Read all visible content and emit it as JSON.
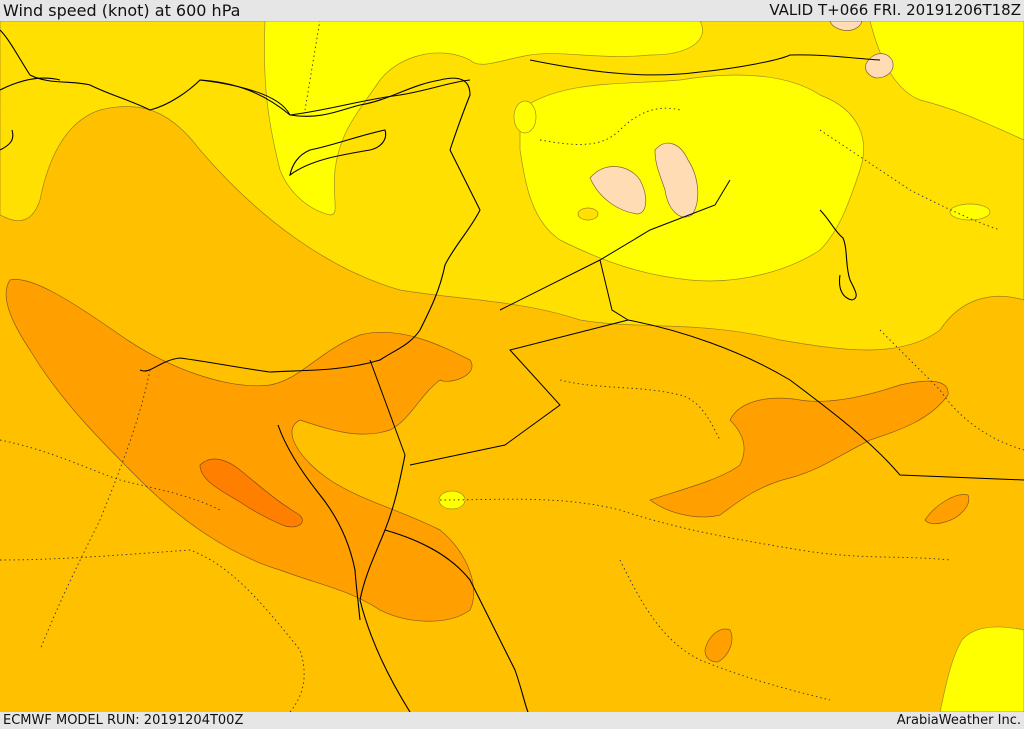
{
  "header": {
    "title": "Wind speed (knot) at 600 hPa",
    "valid": "VALID T+066 FRI. 20191206T18Z"
  },
  "footer": {
    "model_run": "ECMWF MODEL RUN: 20191204T00Z",
    "credit": "ArabiaWeather Inc."
  },
  "colors": {
    "frame": "#e6e6e6",
    "level_1": "#ffffb0",
    "level_2": "#ffff00",
    "level_3": "#ffe000",
    "level_4": "#ffc000",
    "level_5": "#ffa000",
    "level_6": "#ff8000",
    "level_calm": "#ffdcb4",
    "coast": "#000000",
    "border_dotted": "#333333"
  }
}
